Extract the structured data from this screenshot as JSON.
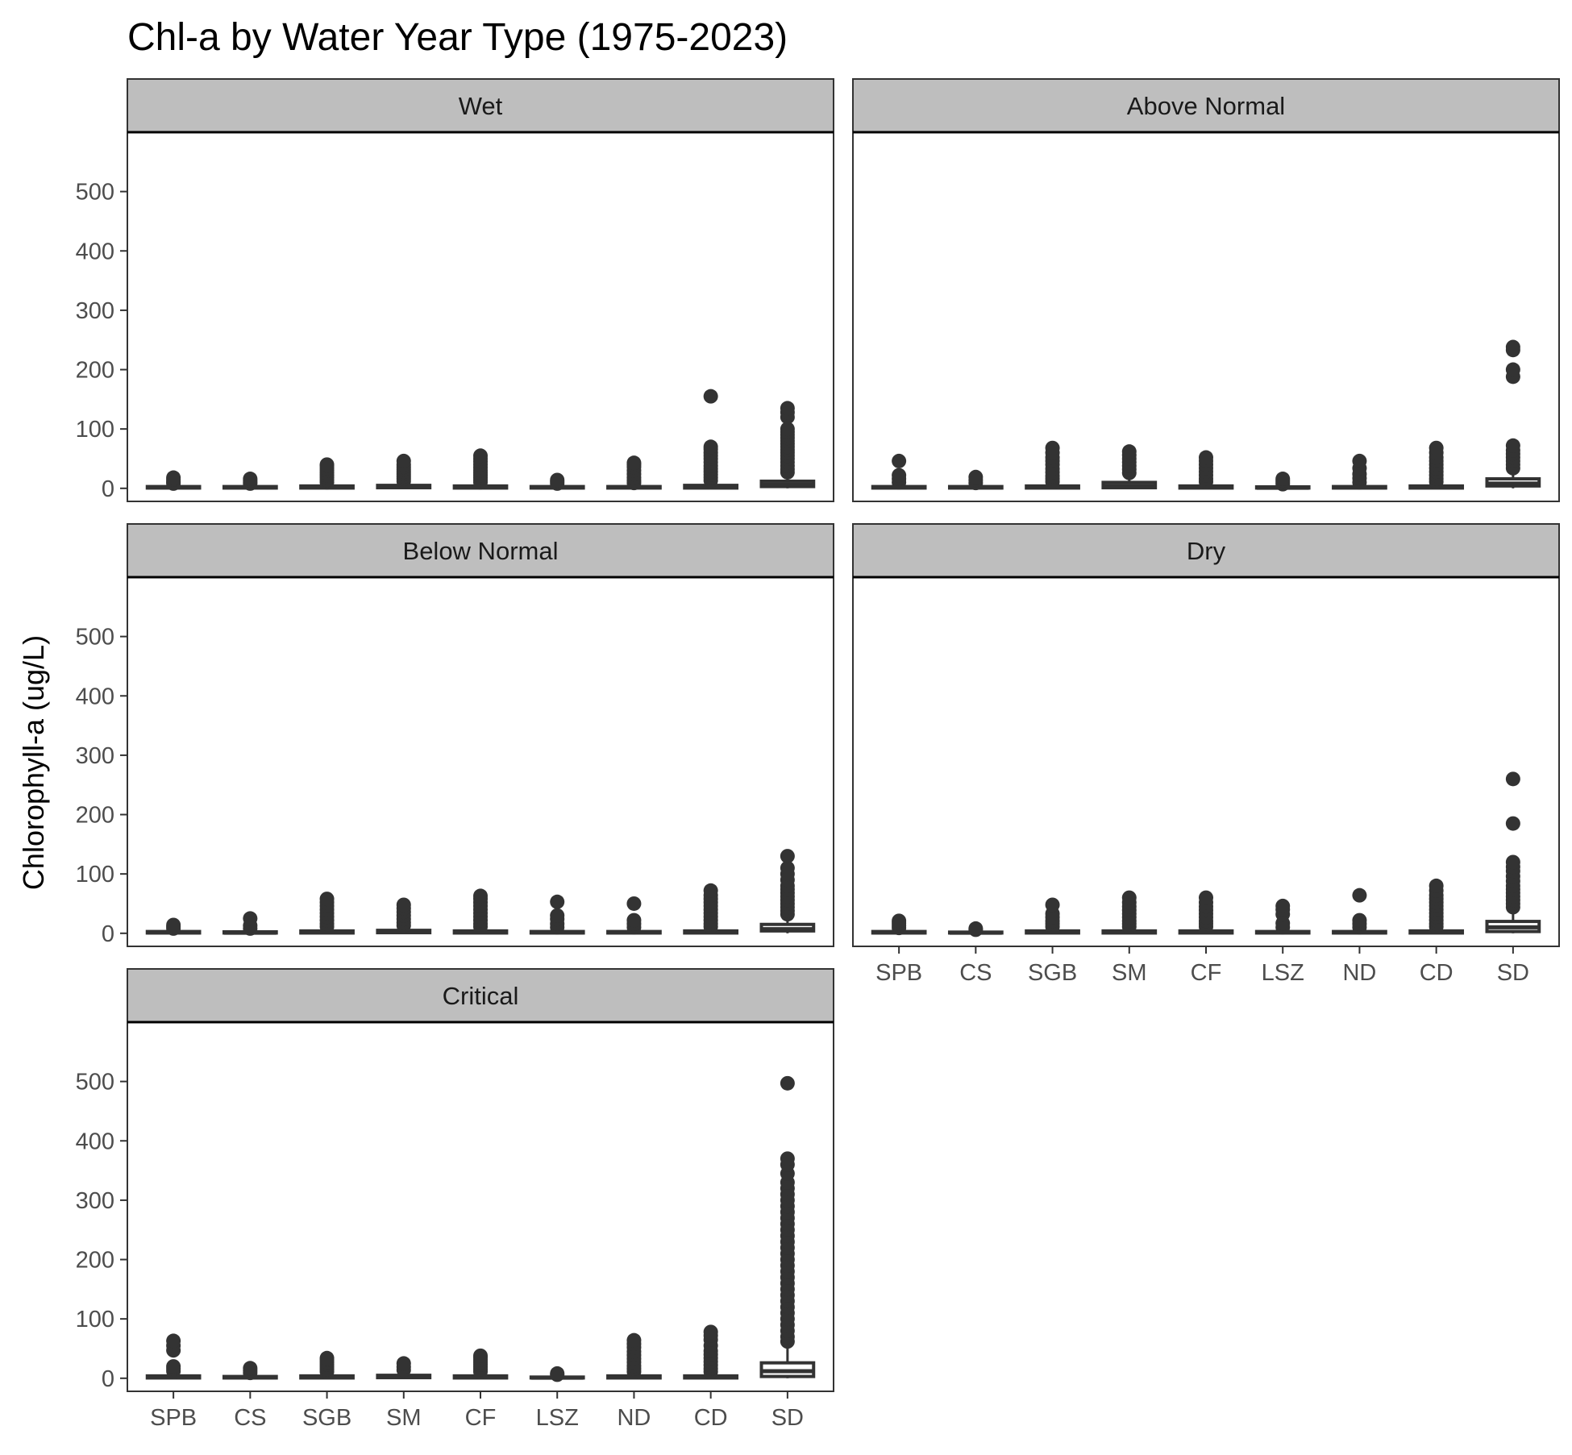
{
  "chart_data": {
    "type": "boxplot",
    "title": "Chl-a by Water Year Type (1975-2023)",
    "ylabel": "Chlorophyll-a (ug/L)",
    "xlabel": "",
    "ylim": [
      -22,
      600
    ],
    "yticks": [
      0,
      100,
      200,
      300,
      400,
      500
    ],
    "categories": [
      "SPB",
      "CS",
      "SGB",
      "SM",
      "CF",
      "LSZ",
      "ND",
      "CD",
      "SD"
    ],
    "facet_layout": "2 columns, 3 rows",
    "grid": false,
    "panels": [
      {
        "name": "Wet",
        "boxes": [
          {
            "q1": 0.5,
            "median": 1.5,
            "q3": 3,
            "whisker_low": 0,
            "whisker_high": 7,
            "outliers": [
              8,
              10,
              12,
              15,
              18
            ]
          },
          {
            "q1": 0.5,
            "median": 1.5,
            "q3": 3,
            "whisker_low": 0,
            "whisker_high": 6,
            "outliers": [
              8,
              10,
              13,
              16
            ]
          },
          {
            "q1": 0.5,
            "median": 2,
            "q3": 4,
            "whisker_low": 0,
            "whisker_high": 9,
            "outliers": [
              10,
              14,
              18,
              22,
              26,
              30,
              34,
              38,
              40
            ]
          },
          {
            "q1": 1,
            "median": 2.5,
            "q3": 5,
            "whisker_low": 0,
            "whisker_high": 11,
            "outliers": [
              12,
              16,
              20,
              24,
              28,
              32,
              36,
              40,
              46
            ]
          },
          {
            "q1": 0.5,
            "median": 2,
            "q3": 4,
            "whisker_low": 0,
            "whisker_high": 9,
            "outliers": [
              10,
              14,
              18,
              22,
              26,
              30,
              35,
              40,
              45,
              50,
              55
            ]
          },
          {
            "q1": 0.5,
            "median": 1.5,
            "q3": 3,
            "whisker_low": 0,
            "whisker_high": 6,
            "outliers": [
              8,
              11,
              14
            ]
          },
          {
            "q1": 0.5,
            "median": 2,
            "q3": 3,
            "whisker_low": 0,
            "whisker_high": 7,
            "outliers": [
              9,
              13,
              18,
              24,
              30,
              36,
              40,
              43
            ]
          },
          {
            "q1": 0.5,
            "median": 2.5,
            "q3": 5,
            "whisker_low": 0,
            "whisker_high": 11,
            "outliers": [
              13,
              18,
              23,
              28,
              33,
              38,
              44,
              50,
              55,
              60,
              66,
              70,
              155
            ]
          },
          {
            "q1": 3,
            "median": 6,
            "q3": 12,
            "whisker_low": 0,
            "whisker_high": 24,
            "outliers": [
              27,
              32,
              38,
              44,
              50,
              55,
              60,
              65,
              70,
              75,
              80,
              85,
              90,
              95,
              100,
              120,
              128,
              135
            ]
          }
        ]
      },
      {
        "name": "Above Normal",
        "boxes": [
          {
            "q1": 0.5,
            "median": 1.5,
            "q3": 3,
            "whisker_low": 0,
            "whisker_high": 7,
            "outliers": [
              10,
              16,
              22,
              46
            ]
          },
          {
            "q1": 0.5,
            "median": 1.5,
            "q3": 3,
            "whisker_low": 0,
            "whisker_high": 6,
            "outliers": [
              9,
              14,
              19
            ]
          },
          {
            "q1": 0.5,
            "median": 2,
            "q3": 4,
            "whisker_low": 0,
            "whisker_high": 9,
            "outliers": [
              11,
              16,
              21,
              27,
              33,
              40,
              46,
              52,
              60,
              68
            ]
          },
          {
            "q1": 1,
            "median": 4,
            "q3": 10,
            "whisker_low": 0,
            "whisker_high": 22,
            "outliers": [
              26,
              32,
              38,
              44,
              50,
              56,
              62
            ]
          },
          {
            "q1": 0.5,
            "median": 2,
            "q3": 4,
            "whisker_low": 0,
            "whisker_high": 9,
            "outliers": [
              11,
              16,
              22,
              28,
              34,
              40,
              46,
              52
            ]
          },
          {
            "q1": 0.5,
            "median": 1,
            "q3": 2.5,
            "whisker_low": 0,
            "whisker_high": 5,
            "outliers": [
              7,
              10,
              13,
              16
            ]
          },
          {
            "q1": 0.5,
            "median": 1.5,
            "q3": 3,
            "whisker_low": 0,
            "whisker_high": 7,
            "outliers": [
              10,
              17,
              24,
              34,
              46
            ]
          },
          {
            "q1": 0.5,
            "median": 2,
            "q3": 4,
            "whisker_low": 0,
            "whisker_high": 9,
            "outliers": [
              11,
              16,
              22,
              28,
              34,
              40,
              46,
              52,
              60,
              68
            ]
          },
          {
            "q1": 4,
            "median": 8,
            "q3": 16,
            "whisker_low": 0,
            "whisker_high": 30,
            "outliers": [
              34,
              40,
              46,
              52,
              58,
              64,
              72,
              188,
              200,
              233,
              238
            ]
          }
        ]
      },
      {
        "name": "Below Normal",
        "boxes": [
          {
            "q1": 0.5,
            "median": 1.5,
            "q3": 3,
            "whisker_low": 0,
            "whisker_high": 6,
            "outliers": [
              8,
              11,
              14
            ]
          },
          {
            "q1": 0.5,
            "median": 1,
            "q3": 2.5,
            "whisker_low": 0,
            "whisker_high": 5,
            "outliers": [
              8,
              13,
              25
            ]
          },
          {
            "q1": 0.5,
            "median": 2,
            "q3": 4,
            "whisker_low": 0,
            "whisker_high": 9,
            "outliers": [
              11,
              16,
              22,
              28,
              34,
              40,
              46,
              52,
              58
            ]
          },
          {
            "q1": 1,
            "median": 2.5,
            "q3": 5,
            "whisker_low": 0,
            "whisker_high": 11,
            "outliers": [
              13,
              18,
              24,
              30,
              36,
              42,
              48
            ]
          },
          {
            "q1": 0.5,
            "median": 2,
            "q3": 4,
            "whisker_low": 0,
            "whisker_high": 9,
            "outliers": [
              11,
              16,
              22,
              28,
              34,
              40,
              46,
              52,
              58,
              63
            ]
          },
          {
            "q1": 0.5,
            "median": 1.5,
            "q3": 3,
            "whisker_low": 0,
            "whisker_high": 7,
            "outliers": [
              10,
              16,
              24,
              30,
              53
            ]
          },
          {
            "q1": 0.5,
            "median": 1.5,
            "q3": 3,
            "whisker_low": 0,
            "whisker_high": 7,
            "outliers": [
              10,
              16,
              22,
              50
            ]
          },
          {
            "q1": 0.5,
            "median": 2,
            "q3": 4,
            "whisker_low": 0,
            "whisker_high": 9,
            "outliers": [
              11,
              16,
              22,
              28,
              34,
              40,
              46,
              52,
              58,
              64,
              72
            ]
          },
          {
            "q1": 4,
            "median": 7,
            "q3": 15,
            "whisker_low": 0,
            "whisker_high": 28,
            "outliers": [
              32,
              38,
              44,
              50,
              56,
              62,
              68,
              74,
              80,
              90,
              100,
              110,
              130
            ]
          }
        ]
      },
      {
        "name": "Dry",
        "boxes": [
          {
            "q1": 0.5,
            "median": 1.5,
            "q3": 3,
            "whisker_low": 0,
            "whisker_high": 7,
            "outliers": [
              9,
              13,
              17,
              21
            ]
          },
          {
            "q1": 0.5,
            "median": 1,
            "q3": 2,
            "whisker_low": 0,
            "whisker_high": 4,
            "outliers": [
              6,
              8
            ]
          },
          {
            "q1": 0.5,
            "median": 2,
            "q3": 4,
            "whisker_low": 0,
            "whisker_high": 9,
            "outliers": [
              11,
              16,
              21,
              27,
              33,
              48
            ]
          },
          {
            "q1": 0.5,
            "median": 2,
            "q3": 4,
            "whisker_low": 0,
            "whisker_high": 9,
            "outliers": [
              11,
              16,
              21,
              27,
              33,
              39,
              45,
              52,
              60
            ]
          },
          {
            "q1": 0.5,
            "median": 2,
            "q3": 4,
            "whisker_low": 0,
            "whisker_high": 9,
            "outliers": [
              11,
              16,
              21,
              27,
              33,
              39,
              45,
              52,
              60
            ]
          },
          {
            "q1": 0.5,
            "median": 1.5,
            "q3": 3,
            "whisker_low": 0,
            "whisker_high": 7,
            "outliers": [
              10,
              17,
              32,
              40,
              46
            ]
          },
          {
            "q1": 0.5,
            "median": 1.5,
            "q3": 3,
            "whisker_low": 0,
            "whisker_high": 7,
            "outliers": [
              10,
              16,
              22,
              64
            ]
          },
          {
            "q1": 0.5,
            "median": 2,
            "q3": 4,
            "whisker_low": 0,
            "whisker_high": 9,
            "outliers": [
              11,
              16,
              22,
              28,
              34,
              40,
              46,
              52,
              58,
              64,
              72,
              80
            ]
          },
          {
            "q1": 3,
            "median": 10,
            "q3": 20,
            "whisker_low": 0,
            "whisker_high": 38,
            "outliers": [
              44,
              50,
              56,
              62,
              68,
              74,
              80,
              88,
              96,
              105,
              112,
              120,
              185,
              260
            ]
          }
        ]
      },
      {
        "name": "Critical",
        "boxes": [
          {
            "q1": 0.5,
            "median": 2,
            "q3": 4,
            "whisker_low": 0,
            "whisker_high": 9,
            "outliers": [
              12,
              16,
              20,
              47,
              55,
              63
            ]
          },
          {
            "q1": 0.5,
            "median": 1.5,
            "q3": 3,
            "whisker_low": 0,
            "whisker_high": 6,
            "outliers": [
              9,
              13,
              17
            ]
          },
          {
            "q1": 0.5,
            "median": 2,
            "q3": 4,
            "whisker_low": 0,
            "whisker_high": 9,
            "outliers": [
              11,
              15,
              19,
              23,
              27,
              31,
              34
            ]
          },
          {
            "q1": 1,
            "median": 2.5,
            "q3": 5,
            "whisker_low": 0,
            "whisker_high": 11,
            "outliers": [
              14,
              19,
              25
            ]
          },
          {
            "q1": 0.5,
            "median": 2,
            "q3": 4,
            "whisker_low": 0,
            "whisker_high": 9,
            "outliers": [
              11,
              15,
              19,
              23,
              27,
              31,
              35,
              38
            ]
          },
          {
            "q1": 0.5,
            "median": 1,
            "q3": 2,
            "whisker_low": 0,
            "whisker_high": 4,
            "outliers": [
              6,
              8
            ]
          },
          {
            "q1": 0.5,
            "median": 2,
            "q3": 4,
            "whisker_low": 0,
            "whisker_high": 9,
            "outliers": [
              11,
              16,
              21,
              27,
              33,
              39,
              45,
              52,
              58,
              64
            ]
          },
          {
            "q1": 0.5,
            "median": 2,
            "q3": 4,
            "whisker_low": 0,
            "whisker_high": 9,
            "outliers": [
              11,
              16,
              22,
              28,
              34,
              40,
              46,
              55,
              65,
              72,
              78
            ]
          },
          {
            "q1": 3,
            "median": 12,
            "q3": 26,
            "whisker_low": 0,
            "whisker_high": 55,
            "outliers": [
              62,
              70,
              80,
              90,
              100,
              110,
              120,
              130,
              140,
              150,
              160,
              170,
              180,
              190,
              200,
              210,
              220,
              230,
              240,
              250,
              260,
              270,
              280,
              290,
              300,
              310,
              320,
              330,
              345,
              360,
              370,
              497
            ]
          }
        ]
      }
    ]
  },
  "colors": {
    "strip_fill": "#BEBEBE",
    "panel_border": "#333333",
    "box_stroke": "#333333",
    "point_fill": "#333333",
    "tick_label": "#4D4D4D",
    "text": "#000000"
  }
}
